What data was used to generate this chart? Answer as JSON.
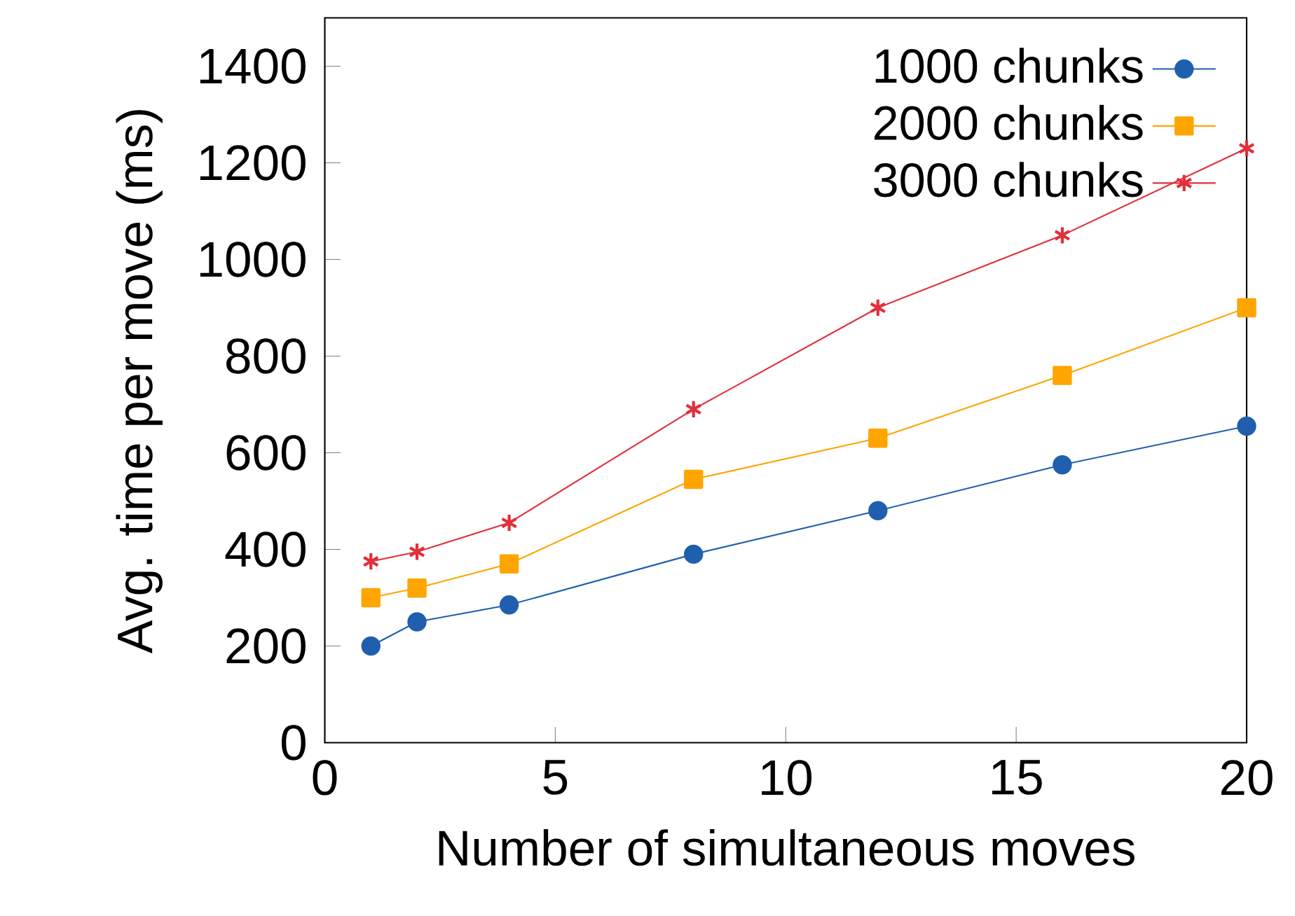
{
  "chart_data": {
    "type": "line",
    "xlabel": "Number of simultaneous moves",
    "ylabel": "Avg. time per move (ms)",
    "xlim": [
      0,
      20
    ],
    "ylim": [
      0,
      1500
    ],
    "xticks": [
      0,
      5,
      10,
      15,
      20
    ],
    "yticks": [
      0,
      200,
      400,
      600,
      800,
      1000,
      1200,
      1400
    ],
    "legend": "top right",
    "grid": false,
    "line_style": "solid",
    "series": [
      {
        "name": "1000 chunks",
        "color": "#1f5fae",
        "marker": "circle",
        "x": [
          1,
          2,
          4,
          8,
          12,
          16,
          20
        ],
        "values": [
          200,
          250,
          285,
          390,
          480,
          575,
          655
        ]
      },
      {
        "name": "2000 chunks",
        "color": "#ffa500",
        "marker": "square",
        "x": [
          1,
          2,
          4,
          8,
          12,
          16,
          20
        ],
        "values": [
          300,
          320,
          370,
          545,
          630,
          760,
          900
        ]
      },
      {
        "name": "3000 chunks",
        "color": "#e0303a",
        "marker": "cross",
        "x": [
          1,
          2,
          4,
          8,
          12,
          16,
          20
        ],
        "values": [
          375,
          395,
          455,
          690,
          900,
          1050,
          1230
        ]
      }
    ]
  }
}
